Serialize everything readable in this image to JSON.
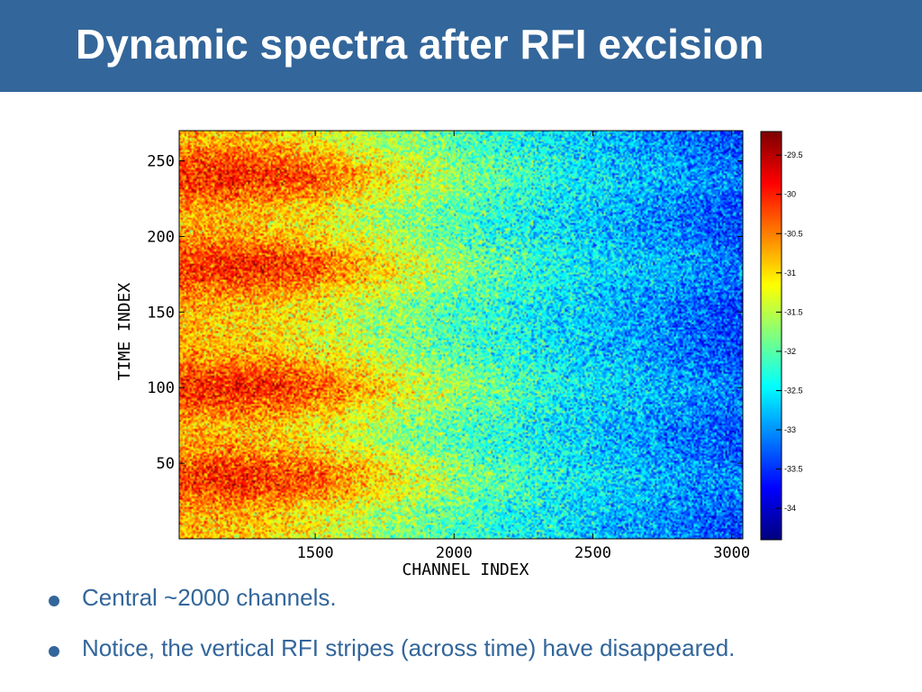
{
  "slide": {
    "title": "Dynamic spectra after RFI excision",
    "bullets": [
      "Central ~2000 channels.",
      "Notice, the vertical RFI stripes (across time) have disappeared."
    ]
  },
  "colors": {
    "title_bar": "#33669a",
    "bullet_text": "#33669a",
    "colormap": "jet"
  },
  "chart_data": {
    "type": "heatmap",
    "title": "",
    "xlabel": "CHANNEL INDEX",
    "ylabel": "TIME INDEX",
    "xlim": [
      1010,
      3040
    ],
    "ylim": [
      0,
      270
    ],
    "xticks": [
      1500,
      2000,
      2500,
      3000
    ],
    "yticks": [
      50,
      100,
      150,
      200,
      250
    ],
    "colorbar": {
      "range": [
        -34.4,
        -29.2
      ],
      "ticks": [
        "-29.5",
        "-30",
        "-30.5",
        "-31",
        "-31.5",
        "-32",
        "-32.5",
        "-33",
        "-33.5",
        "-34"
      ]
    },
    "description_values": {
      "high_power_time_bands": [
        40,
        100,
        180,
        240
      ],
      "peak_channel": 1350
    }
  }
}
